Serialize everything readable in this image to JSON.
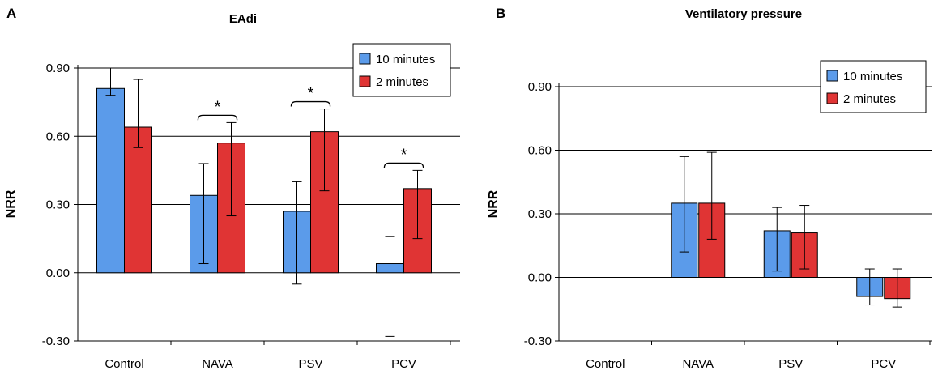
{
  "chart_data": [
    {
      "type": "bar",
      "panel_label": "A",
      "title": "EAdi",
      "xlabel": "",
      "ylabel": "NRR",
      "categories": [
        "Control",
        "NAVA",
        "PSV",
        "PCV"
      ],
      "ylim": [
        -0.3,
        0.9
      ],
      "yticks": [
        -0.3,
        0.0,
        0.3,
        0.6,
        0.9
      ],
      "ytick_labels": [
        "-0.30",
        "0.00",
        "0.30",
        "0.60",
        "0.90"
      ],
      "grid": true,
      "legend_position": "top-right",
      "series": [
        {
          "name": "10 minutes",
          "color": "#5b9bea",
          "values": [
            0.81,
            0.34,
            0.27,
            0.04
          ],
          "err_low": [
            0.78,
            0.04,
            -0.05,
            -0.28
          ],
          "err_high": [
            0.9,
            0.48,
            0.4,
            0.16
          ]
        },
        {
          "name": "2 minutes",
          "color": "#e03434",
          "values": [
            0.64,
            0.57,
            0.62,
            0.37
          ],
          "err_low": [
            0.55,
            0.25,
            0.36,
            0.15
          ],
          "err_high": [
            0.85,
            0.66,
            0.72,
            0.45
          ]
        }
      ],
      "significance": [
        {
          "category": "NAVA",
          "label": "*"
        },
        {
          "category": "PSV",
          "label": "*"
        },
        {
          "category": "PCV",
          "label": "*"
        }
      ]
    },
    {
      "type": "bar",
      "panel_label": "B",
      "title": "Ventilatory pressure",
      "xlabel": "",
      "ylabel": "NRR",
      "categories": [
        "Control",
        "NAVA",
        "PSV",
        "PCV"
      ],
      "ylim": [
        -0.3,
        0.9
      ],
      "yticks": [
        -0.3,
        0.0,
        0.3,
        0.6,
        0.9
      ],
      "ytick_labels": [
        "-0.30",
        "0.00",
        "0.30",
        "0.60",
        "0.90"
      ],
      "grid": true,
      "legend_position": "top-right",
      "series": [
        {
          "name": "10 minutes",
          "color": "#5b9bea",
          "values": [
            null,
            0.35,
            0.22,
            -0.09
          ],
          "err_low": [
            null,
            0.12,
            0.03,
            -0.13
          ],
          "err_high": [
            null,
            0.57,
            0.33,
            0.04
          ]
        },
        {
          "name": "2 minutes",
          "color": "#e03434",
          "values": [
            null,
            0.35,
            0.21,
            -0.1
          ],
          "err_low": [
            null,
            0.18,
            0.04,
            -0.14
          ],
          "err_high": [
            null,
            0.59,
            0.34,
            0.04
          ]
        }
      ],
      "significance": []
    }
  ]
}
